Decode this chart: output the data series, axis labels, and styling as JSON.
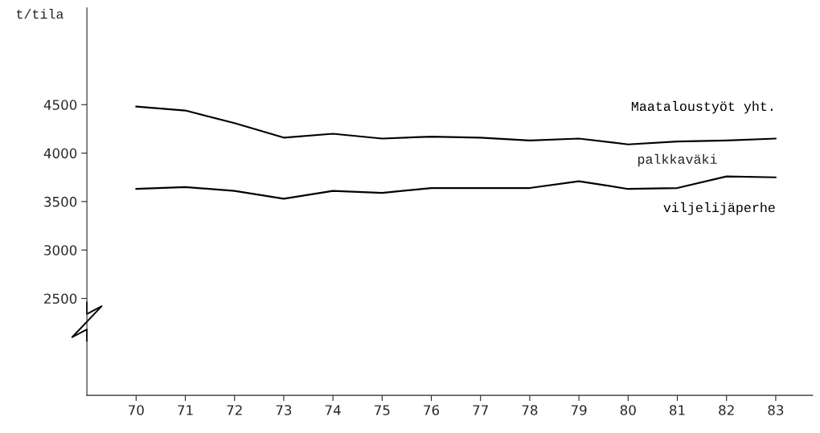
{
  "chart_data": {
    "type": "line",
    "ylabel": "t/tila",
    "categories": [
      "70",
      "71",
      "72",
      "73",
      "74",
      "75",
      "76",
      "77",
      "78",
      "79",
      "80",
      "81",
      "82",
      "83"
    ],
    "series": [
      {
        "name": "Maataloustyöt yht.",
        "color": "#000000",
        "values": [
          4480,
          4440,
          4310,
          4160,
          4200,
          4150,
          4170,
          4160,
          4130,
          4150,
          4090,
          4120,
          4130,
          4150
        ]
      },
      {
        "name": "viljelijäperhe",
        "color": "#000000",
        "values": [
          3630,
          3650,
          3610,
          3530,
          3610,
          3590,
          3640,
          3640,
          3640,
          3710,
          3630,
          3640,
          3760,
          3750
        ]
      }
    ],
    "annotations": [
      "palkkaväki"
    ],
    "ylim": [
      1500,
      5500
    ],
    "yticks": [
      2500,
      3000,
      3500,
      4000,
      4500
    ],
    "grid": false,
    "legend": false,
    "marker": "none",
    "line_style": "solid"
  }
}
